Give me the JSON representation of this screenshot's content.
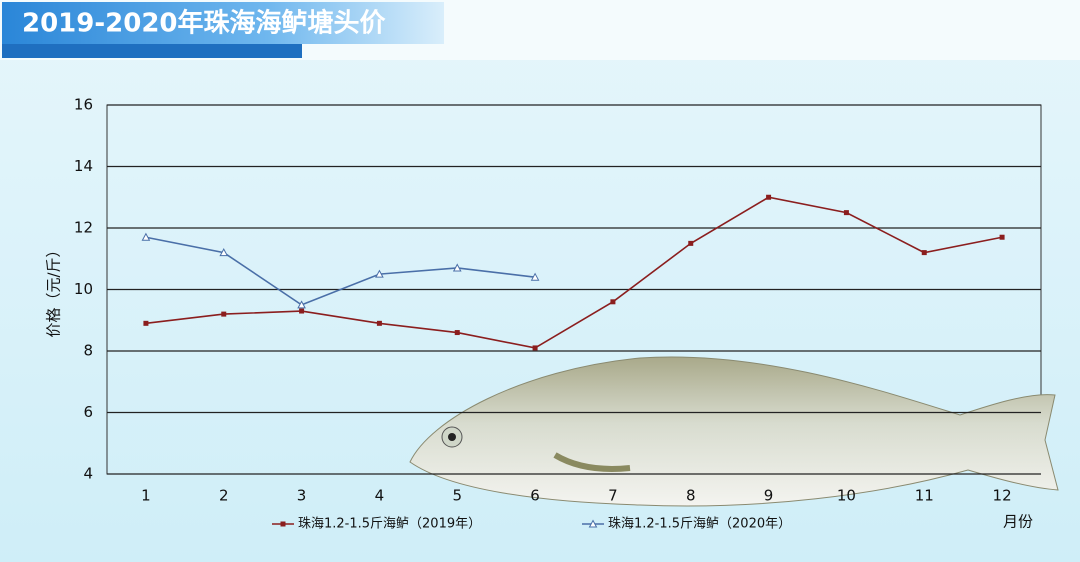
{
  "chart_data": {
    "type": "line",
    "title": "2019-2020年珠海海鲈塘头价",
    "y_label": "价格（元/斤）",
    "x_label": "月份",
    "categories": [
      "1",
      "2",
      "3",
      "4",
      "5",
      "6",
      "7",
      "8",
      "9",
      "10",
      "11",
      "12"
    ],
    "series": [
      {
        "name": "珠海1.2-1.5斤海鲈（2019年）",
        "color": "#8b1e1e",
        "marker": "square",
        "values": [
          8.9,
          9.2,
          9.3,
          8.9,
          8.6,
          8.1,
          9.6,
          11.5,
          13.0,
          12.5,
          11.2,
          11.7
        ]
      },
      {
        "name": "珠海1.2-1.5斤海鲈（2020年）",
        "color": "#4a6fa8",
        "marker": "triangle",
        "values": [
          11.7,
          11.2,
          9.5,
          10.5,
          10.7,
          10.4,
          null,
          null,
          null,
          null,
          null,
          null
        ]
      }
    ],
    "ylim": [
      4,
      16
    ],
    "yticks": [
      4,
      6,
      8,
      10,
      12,
      14,
      16
    ],
    "grid": true
  }
}
